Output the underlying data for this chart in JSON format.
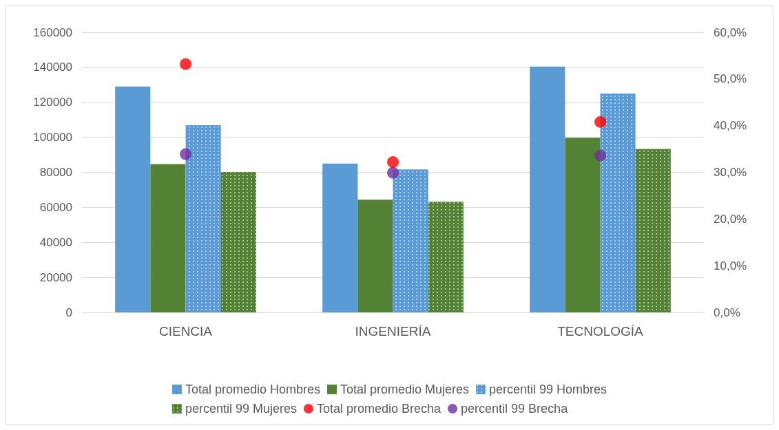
{
  "chart_data": {
    "type": "bar",
    "categories": [
      "CIENCIA",
      "INGENIERÍA",
      "TECNOLOGÍA"
    ],
    "series": [
      {
        "name": "Total promedio Hombres",
        "color": "#5b9bd5",
        "values": [
          129000,
          85000,
          140400
        ]
      },
      {
        "name": "Total promedio Mujeres",
        "color": "#548235",
        "values": [
          84700,
          64400,
          99800
        ]
      },
      {
        "name": "percentil 99 Hombres",
        "color": "#5b9bd5",
        "values": [
          106900,
          81700,
          125000
        ]
      },
      {
        "name": "percentil 99 Mujeres",
        "color": "#548235",
        "values": [
          80200,
          63200,
          93400
        ]
      },
      {
        "name": "Total promedio Brecha",
        "type": "scatter",
        "axis": "y2",
        "color": "#ff0000",
        "x": [
          "CIENCIA",
          "INGENIERÍA",
          "TECNOLOGÍA"
        ],
        "values": [
          53.2,
          32.2,
          40.8
        ]
      },
      {
        "name": "percentil 99 Brecha",
        "type": "scatter",
        "axis": "y2",
        "color": "#7030a0",
        "x": [
          "CIENCIA",
          "INGENIERÍA",
          "TECNOLOGÍA"
        ],
        "values": [
          33.9,
          29.9,
          33.6
        ]
      }
    ],
    "ylim": [
      0,
      160000
    ],
    "yticks": [
      0,
      20000,
      40000,
      60000,
      80000,
      100000,
      120000,
      140000,
      160000
    ],
    "y2lim": [
      0,
      60
    ],
    "y2ticks": [
      {
        "value": 0,
        "label": "0,0%"
      },
      {
        "value": 10,
        "label": "10,0%"
      },
      {
        "value": 20,
        "label": "20,0%"
      },
      {
        "value": 30,
        "label": "30,0%"
      },
      {
        "value": 40,
        "label": "40,0%"
      },
      {
        "value": 50,
        "label": "50,0%"
      },
      {
        "value": 60,
        "label": "60,0%"
      }
    ],
    "grid": "y",
    "legend": "bottom",
    "marker": "circle"
  }
}
